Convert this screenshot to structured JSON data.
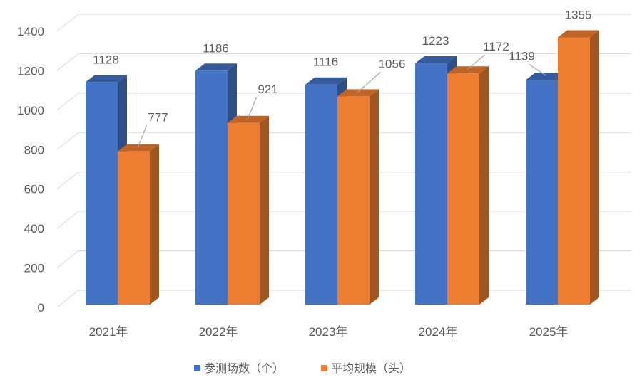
{
  "chart_data": {
    "type": "bar",
    "three_d": true,
    "categories": [
      "2021年",
      "2022年",
      "2023年",
      "2024年",
      "2025年"
    ],
    "series": [
      {
        "name": "参测场数（个）",
        "values": [
          1128,
          1186,
          1116,
          1223,
          1139
        ],
        "color": "#4472C4"
      },
      {
        "name": "平均规模（头）",
        "values": [
          777,
          921,
          1056,
          1172,
          1355
        ],
        "color": "#ED7D31"
      }
    ],
    "ylim": [
      0,
      1400
    ],
    "yticks": [
      0,
      200,
      400,
      600,
      800,
      1000,
      1200,
      1400
    ],
    "grid": true,
    "legend": "bottom",
    "data_labels": true
  }
}
